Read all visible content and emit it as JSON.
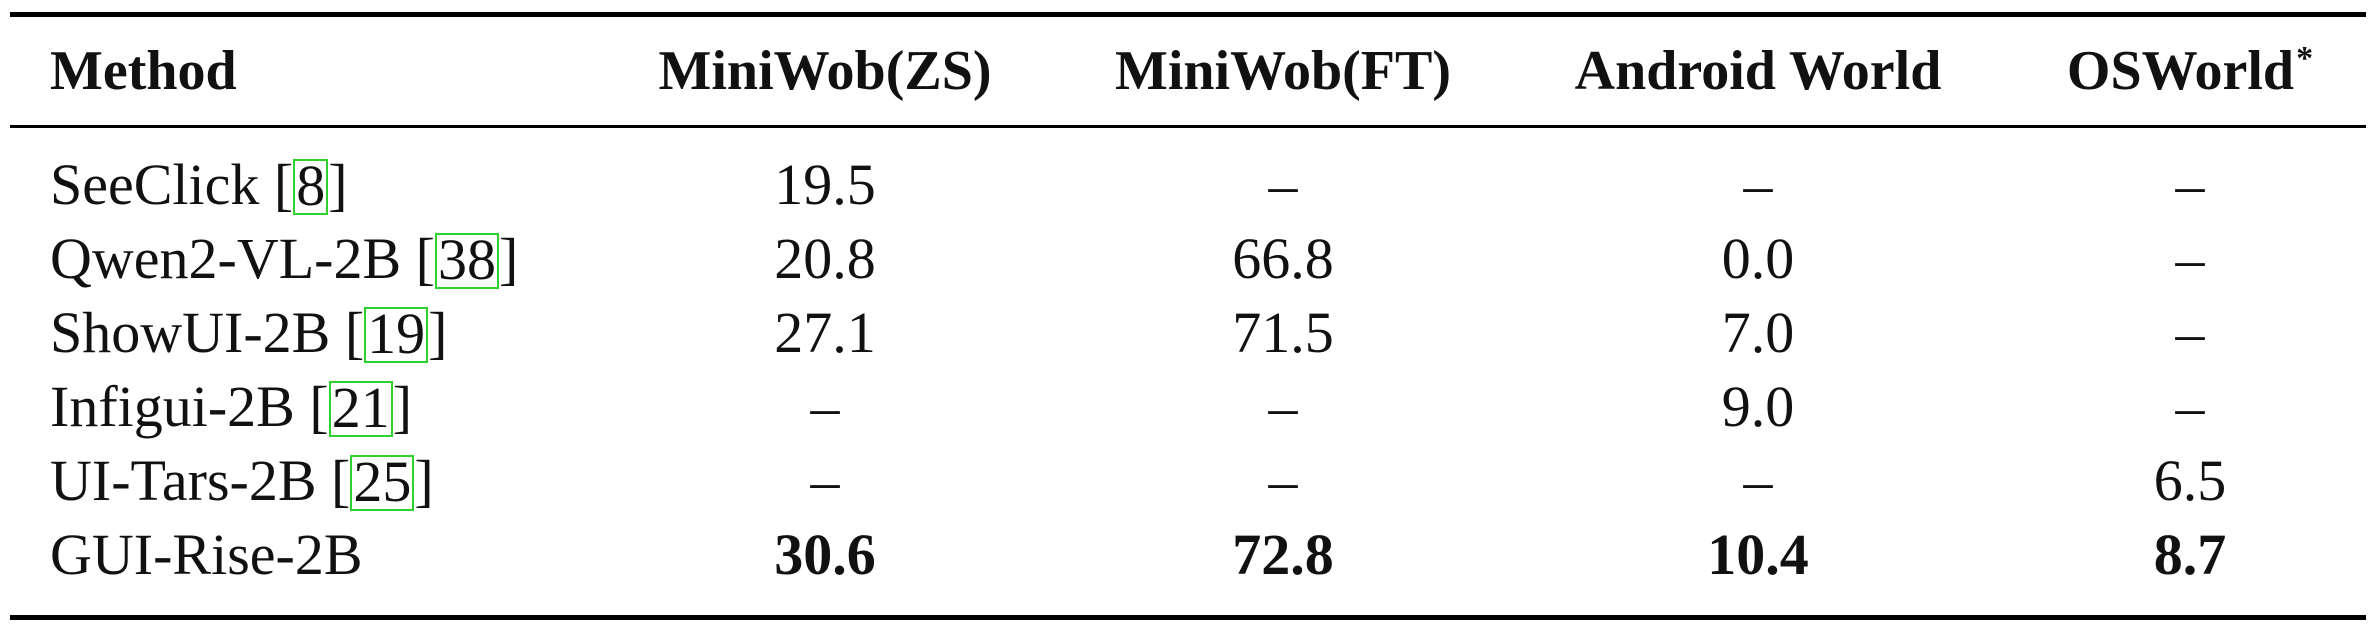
{
  "table": {
    "headers": [
      "Method",
      "MiniWob(ZS)",
      "MiniWob(FT)",
      "Android World",
      "OSWorld"
    ],
    "header_superscript": "*",
    "rows": [
      {
        "method": "SeeClick",
        "ref": "8",
        "values": [
          "19.5",
          "–",
          "–",
          "–"
        ]
      },
      {
        "method": "Qwen2-VL-2B",
        "ref": "38",
        "values": [
          "20.8",
          "66.8",
          "0.0",
          "–"
        ]
      },
      {
        "method": "ShowUI-2B",
        "ref": "19",
        "values": [
          "27.1",
          "71.5",
          "7.0",
          "–"
        ]
      },
      {
        "method": "Infigui-2B",
        "ref": "21",
        "values": [
          "–",
          "–",
          "9.0",
          "–"
        ]
      },
      {
        "method": "UI-Tars-2B",
        "ref": "25",
        "values": [
          "–",
          "–",
          "–",
          "6.5"
        ]
      },
      {
        "method": "GUI-Rise-2B",
        "ref": "",
        "values": [
          "30.6",
          "72.8",
          "10.4",
          "8.7"
        ],
        "bold": true
      }
    ],
    "citation_box_color": "#2fd12f"
  }
}
